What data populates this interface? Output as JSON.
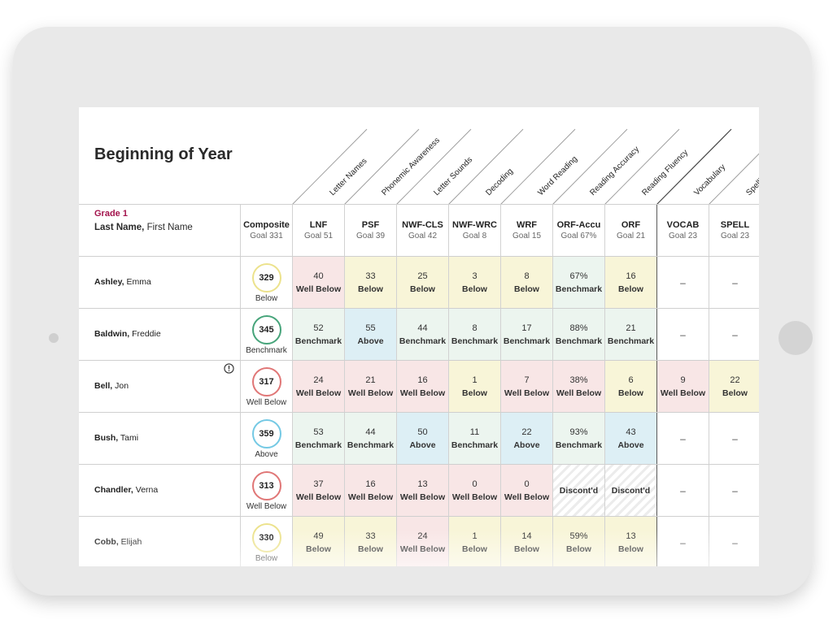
{
  "page_title": "Beginning of Year",
  "grade_label": "Grade 1",
  "name_header": {
    "last": "Last Name,",
    "first": "First Name"
  },
  "diagonal_headers": [
    "Letter Names",
    "Phonemic Awareness",
    "Letter Sounds",
    "Decoding",
    "Word Reading",
    "Reading Accuracy",
    "Reading Fluency",
    "Vocabulary",
    "Spelling"
  ],
  "composite_header": {
    "code": "Composite",
    "goal": "Goal 331"
  },
  "columns": [
    {
      "code": "LNF",
      "goal": "Goal 51"
    },
    {
      "code": "PSF",
      "goal": "Goal 39"
    },
    {
      "code": "NWF-CLS",
      "goal": "Goal 42"
    },
    {
      "code": "NWF-WRC",
      "goal": "Goal 8"
    },
    {
      "code": "WRF",
      "goal": "Goal 15"
    },
    {
      "code": "ORF-Accu",
      "goal": "Goal 67%"
    },
    {
      "code": "ORF",
      "goal": "Goal 21"
    },
    {
      "code": "VOCAB",
      "goal": "Goal 23"
    },
    {
      "code": "SPELL",
      "goal": "Goal 23"
    }
  ],
  "status_colors": {
    "Well Below": "#f8e6e6",
    "Below": "#f8f5d8",
    "Benchmark": "#ecf5ef",
    "Above": "#ddeff5",
    "Discont'd": "hatch",
    "none": "#ffffff"
  },
  "composite_ring_colors": {
    "Well Below": "#e07676",
    "Below": "#ece28c",
    "Benchmark": "#46a47a",
    "Above": "#74c9e4"
  },
  "students": [
    {
      "last": "Ashley,",
      "first": "Emma",
      "alert": "",
      "composite": {
        "score": "329",
        "status": "Below"
      },
      "cells": [
        {
          "score": "40",
          "status": "Well Below"
        },
        {
          "score": "33",
          "status": "Below"
        },
        {
          "score": "25",
          "status": "Below"
        },
        {
          "score": "3",
          "status": "Below"
        },
        {
          "score": "8",
          "status": "Below"
        },
        {
          "score": "67%",
          "status": "Benchmark"
        },
        {
          "score": "16",
          "status": "Below"
        },
        {
          "score": "–",
          "status": ""
        },
        {
          "score": "–",
          "status": ""
        }
      ]
    },
    {
      "last": "Baldwin,",
      "first": "Freddie",
      "alert": "",
      "composite": {
        "score": "345",
        "status": "Benchmark"
      },
      "cells": [
        {
          "score": "52",
          "status": "Benchmark"
        },
        {
          "score": "55",
          "status": "Above"
        },
        {
          "score": "44",
          "status": "Benchmark"
        },
        {
          "score": "8",
          "status": "Benchmark"
        },
        {
          "score": "17",
          "status": "Benchmark"
        },
        {
          "score": "88%",
          "status": "Benchmark"
        },
        {
          "score": "21",
          "status": "Benchmark"
        },
        {
          "score": "–",
          "status": ""
        },
        {
          "score": "–",
          "status": ""
        }
      ]
    },
    {
      "last": "Bell,",
      "first": "Jon",
      "alert": "alert-circle-icon",
      "composite": {
        "score": "317",
        "status": "Well Below"
      },
      "cells": [
        {
          "score": "24",
          "status": "Well Below"
        },
        {
          "score": "21",
          "status": "Well Below"
        },
        {
          "score": "16",
          "status": "Well Below"
        },
        {
          "score": "1",
          "status": "Below"
        },
        {
          "score": "7",
          "status": "Well Below"
        },
        {
          "score": "38%",
          "status": "Well Below"
        },
        {
          "score": "6",
          "status": "Below"
        },
        {
          "score": "9",
          "status": "Well Below"
        },
        {
          "score": "22",
          "status": "Below"
        }
      ]
    },
    {
      "last": "Bush,",
      "first": "Tami",
      "alert": "",
      "composite": {
        "score": "359",
        "status": "Above"
      },
      "cells": [
        {
          "score": "53",
          "status": "Benchmark"
        },
        {
          "score": "44",
          "status": "Benchmark"
        },
        {
          "score": "50",
          "status": "Above"
        },
        {
          "score": "11",
          "status": "Benchmark"
        },
        {
          "score": "22",
          "status": "Above"
        },
        {
          "score": "93%",
          "status": "Benchmark"
        },
        {
          "score": "43",
          "status": "Above"
        },
        {
          "score": "–",
          "status": ""
        },
        {
          "score": "–",
          "status": ""
        }
      ]
    },
    {
      "last": "Chandler,",
      "first": "Verna",
      "alert": "",
      "composite": {
        "score": "313",
        "status": "Well Below"
      },
      "cells": [
        {
          "score": "37",
          "status": "Well Below"
        },
        {
          "score": "16",
          "status": "Well Below"
        },
        {
          "score": "13",
          "status": "Well Below"
        },
        {
          "score": "0",
          "status": "Well Below"
        },
        {
          "score": "0",
          "status": "Well Below"
        },
        {
          "score": "",
          "status": "Discont'd"
        },
        {
          "score": "",
          "status": "Discont'd"
        },
        {
          "score": "–",
          "status": ""
        },
        {
          "score": "–",
          "status": ""
        }
      ]
    },
    {
      "last": "Cobb,",
      "first": "Elijah",
      "alert": "",
      "composite": {
        "score": "330",
        "status": "Below"
      },
      "cells": [
        {
          "score": "49",
          "status": "Below"
        },
        {
          "score": "33",
          "status": "Below"
        },
        {
          "score": "24",
          "status": "Well Below"
        },
        {
          "score": "1",
          "status": "Below"
        },
        {
          "score": "14",
          "status": "Below"
        },
        {
          "score": "59%",
          "status": "Below"
        },
        {
          "score": "13",
          "status": "Below"
        },
        {
          "score": "–",
          "status": ""
        },
        {
          "score": "–",
          "status": ""
        }
      ]
    }
  ]
}
